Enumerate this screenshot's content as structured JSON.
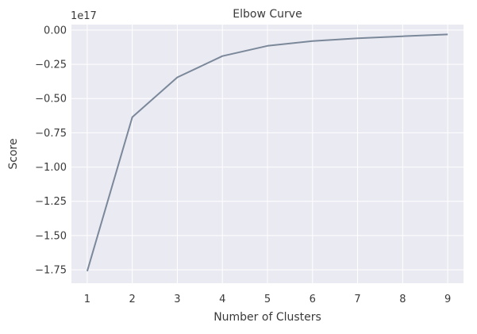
{
  "chart_data": {
    "type": "line",
    "title": "Elbow Curve",
    "xlabel": "Number of Clusters",
    "ylabel": "Score",
    "offset_label": "1e17",
    "x": [
      1,
      2,
      3,
      4,
      5,
      6,
      7,
      8,
      9
    ],
    "series": [
      {
        "values": [
          -1.76,
          -0.635,
          -0.345,
          -0.19,
          -0.115,
          -0.08,
          -0.06,
          -0.045,
          -0.032
        ],
        "color": "#7b889a"
      }
    ],
    "x_ticks": [
      1,
      2,
      3,
      4,
      5,
      6,
      7,
      8,
      9
    ],
    "x_tick_labels": [
      "1",
      "2",
      "3",
      "4",
      "5",
      "6",
      "7",
      "8",
      "9"
    ],
    "y_ticks": [
      0.0,
      -0.25,
      -0.5,
      -0.75,
      -1.0,
      -1.25,
      -1.5,
      -1.75
    ],
    "y_tick_labels": [
      "0.00",
      "−0.25",
      "−0.50",
      "−0.75",
      "−1.00",
      "−1.25",
      "−1.50",
      "−1.75"
    ],
    "xlim": [
      0.65,
      9.35
    ],
    "ylim": [
      -1.848,
      0.04
    ],
    "grid": true,
    "background": "#eaeaf2",
    "grid_color": "#ffffff"
  }
}
